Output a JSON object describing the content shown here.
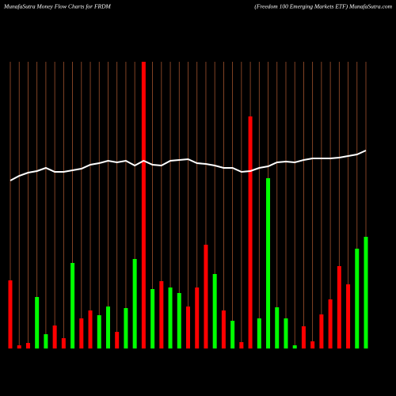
{
  "chart_data": {
    "type": "bar",
    "title": "MunafaSutra  Money Flow  Charts for FRDM",
    "subtitle": "(Freedom 100  Emerging Markets ETF) MunafaSutra.com",
    "categories": [
      null,
      null,
      null,
      null,
      null,
      null,
      null,
      null,
      null,
      null,
      null,
      null,
      null,
      null,
      null,
      null,
      null,
      null,
      null,
      null,
      null,
      null,
      null,
      null,
      null,
      null,
      null,
      null,
      null,
      null,
      null,
      null,
      null,
      null,
      null,
      null,
      null,
      null,
      null,
      null,
      null
    ],
    "ylim": [
      0,
      362
    ],
    "y2lim": [
      0,
      362
    ],
    "series": [
      {
        "name": "money-flow",
        "values": [
          86,
          4,
          7,
          65,
          18,
          29,
          13,
          108,
          38,
          48,
          42,
          53,
          21,
          51,
          113,
          362,
          75,
          85,
          77,
          70,
          53,
          77,
          131,
          94,
          48,
          35,
          8,
          293,
          38,
          215,
          52,
          38,
          4,
          28,
          9,
          43,
          62,
          104,
          81,
          126,
          141
        ],
        "colors": [
          "#ff0000",
          "#ff0000",
          "#ff0000",
          "#00ff00",
          "#00ff00",
          "#ff0000",
          "#ff0000",
          "#00ff00",
          "#ff0000",
          "#ff0000",
          "#00ff00",
          "#00ff00",
          "#ff0000",
          "#00ff00",
          "#00ff00",
          "#ff0000",
          "#00ff00",
          "#ff0000",
          "#00ff00",
          "#00ff00",
          "#ff0000",
          "#ff0000",
          "#ff0000",
          "#00ff00",
          "#ff0000",
          "#00ff00",
          "#ff0000",
          "#ff0000",
          "#00ff00",
          "#00ff00",
          "#00ff00",
          "#00ff00",
          "#00ff00",
          "#ff0000",
          "#ff0000",
          "#ff0000",
          "#ff0000",
          "#ff0000",
          "#ff0000",
          "#00ff00",
          "#00ff00"
        ]
      },
      {
        "name": "price",
        "axis": "y2",
        "color": "#ffffff",
        "values": [
          212,
          218,
          222,
          224,
          228,
          223,
          223,
          225,
          227,
          232,
          234,
          237,
          235,
          237,
          231,
          237,
          232,
          231,
          237,
          238,
          239,
          234,
          233,
          231,
          228,
          228,
          223,
          224,
          228,
          230,
          235,
          236,
          235,
          238,
          240,
          240,
          240,
          241,
          243,
          245,
          250
        ]
      }
    ],
    "gridline_color": "#a0522d"
  }
}
